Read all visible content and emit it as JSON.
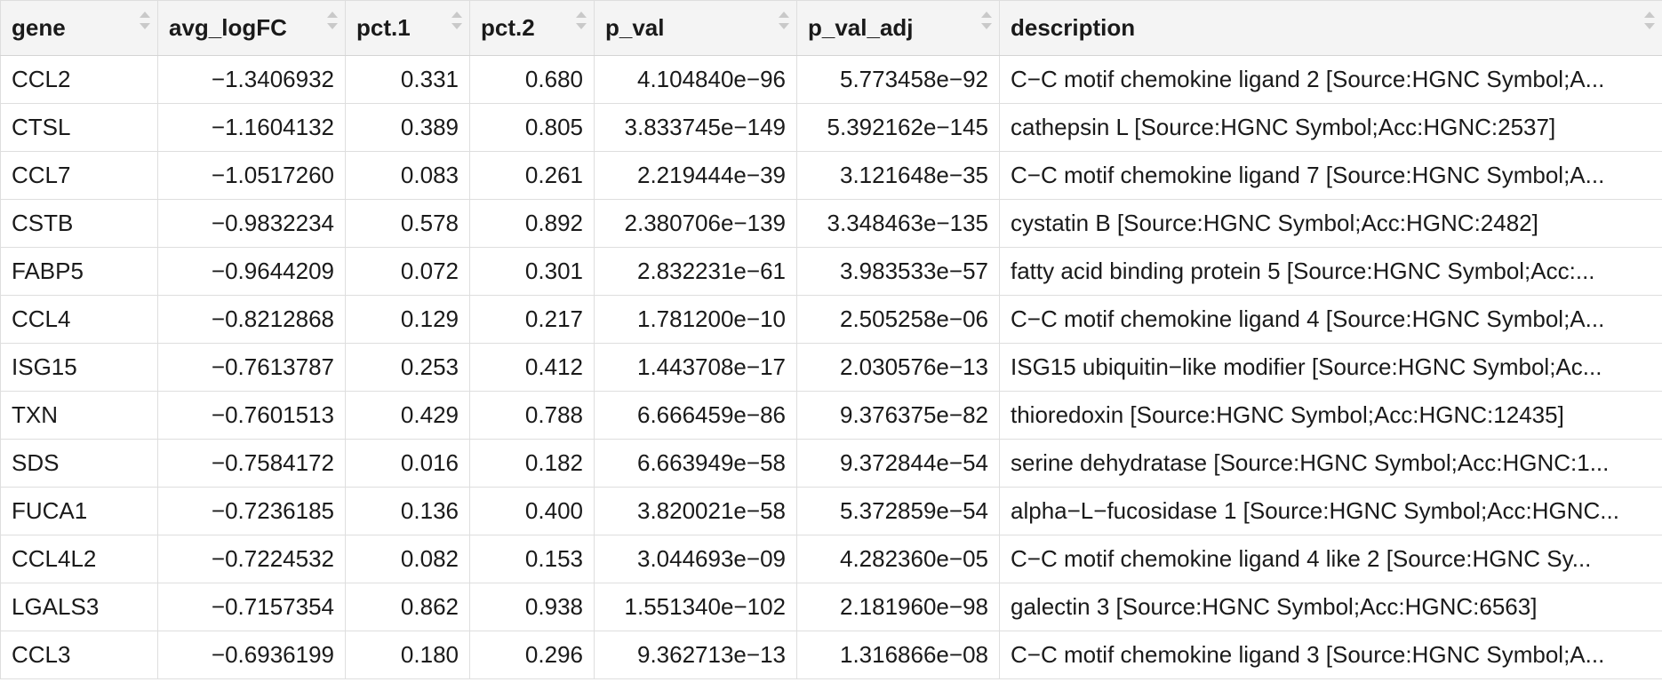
{
  "table": {
    "columns": [
      {
        "key": "gene",
        "label": "gene",
        "align": "left"
      },
      {
        "key": "avg_logFC",
        "label": "avg_logFC",
        "align": "right"
      },
      {
        "key": "pct_1",
        "label": "pct.1",
        "align": "right"
      },
      {
        "key": "pct_2",
        "label": "pct.2",
        "align": "right"
      },
      {
        "key": "p_val",
        "label": "p_val",
        "align": "right"
      },
      {
        "key": "p_val_adj",
        "label": "p_val_adj",
        "align": "right"
      },
      {
        "key": "description",
        "label": "description",
        "align": "left"
      }
    ],
    "rows": [
      [
        "CCL2",
        "−1.3406932",
        "0.331",
        "0.680",
        "4.104840e−96",
        "5.773458e−92",
        "C−C motif chemokine ligand 2 [Source:HGNC Symbol;A..."
      ],
      [
        "CTSL",
        "−1.1604132",
        "0.389",
        "0.805",
        "3.833745e−149",
        "5.392162e−145",
        "cathepsin L [Source:HGNC Symbol;Acc:HGNC:2537]"
      ],
      [
        "CCL7",
        "−1.0517260",
        "0.083",
        "0.261",
        "2.219444e−39",
        "3.121648e−35",
        "C−C motif chemokine ligand 7 [Source:HGNC Symbol;A..."
      ],
      [
        "CSTB",
        "−0.9832234",
        "0.578",
        "0.892",
        "2.380706e−139",
        "3.348463e−135",
        "cystatin B [Source:HGNC Symbol;Acc:HGNC:2482]"
      ],
      [
        "FABP5",
        "−0.9644209",
        "0.072",
        "0.301",
        "2.832231e−61",
        "3.983533e−57",
        "fatty acid binding protein 5 [Source:HGNC Symbol;Acc:..."
      ],
      [
        "CCL4",
        "−0.8212868",
        "0.129",
        "0.217",
        "1.781200e−10",
        "2.505258e−06",
        "C−C motif chemokine ligand 4 [Source:HGNC Symbol;A..."
      ],
      [
        "ISG15",
        "−0.7613787",
        "0.253",
        "0.412",
        "1.443708e−17",
        "2.030576e−13",
        "ISG15 ubiquitin−like modifier [Source:HGNC Symbol;Ac..."
      ],
      [
        "TXN",
        "−0.7601513",
        "0.429",
        "0.788",
        "6.666459e−86",
        "9.376375e−82",
        "thioredoxin [Source:HGNC Symbol;Acc:HGNC:12435]"
      ],
      [
        "SDS",
        "−0.7584172",
        "0.016",
        "0.182",
        "6.663949e−58",
        "9.372844e−54",
        "serine dehydratase [Source:HGNC Symbol;Acc:HGNC:1..."
      ],
      [
        "FUCA1",
        "−0.7236185",
        "0.136",
        "0.400",
        "3.820021e−58",
        "5.372859e−54",
        "alpha−L−fucosidase 1 [Source:HGNC Symbol;Acc:HGNC..."
      ],
      [
        "CCL4L2",
        "−0.7224532",
        "0.082",
        "0.153",
        "3.044693e−09",
        "4.282360e−05",
        "C−C motif chemokine ligand 4 like 2 [Source:HGNC Sy..."
      ],
      [
        "LGALS3",
        "−0.7157354",
        "0.862",
        "0.938",
        "1.551340e−102",
        "2.181960e−98",
        "galectin 3 [Source:HGNC Symbol;Acc:HGNC:6563]"
      ],
      [
        "CCL3",
        "−0.6936199",
        "0.180",
        "0.296",
        "9.362713e−13",
        "1.316866e−08",
        "C−C motif chemokine ligand 3 [Source:HGNC Symbol;A..."
      ]
    ]
  },
  "icons": {
    "sort": "sort-icon"
  },
  "colors": {
    "header_bg": "#f4f4f4",
    "border": "#dedede",
    "text": "#1a1a1a",
    "sort_arrow": "#c9c9c9"
  }
}
